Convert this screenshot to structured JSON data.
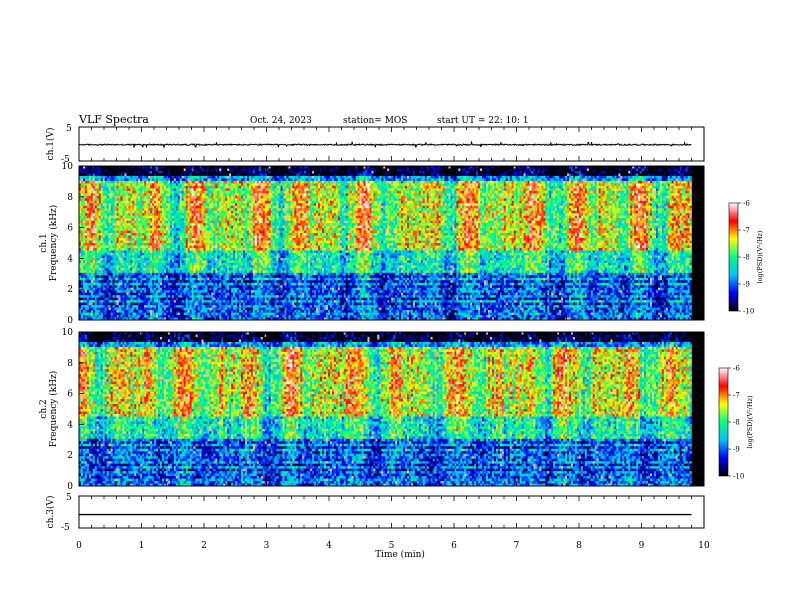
{
  "header": {
    "title": "VLF Spectra",
    "date": "Oct. 24, 2023",
    "station": "station= MOS",
    "start_ut": "start UT =  22: 10: 1"
  },
  "chart_data": [
    {
      "type": "line",
      "panel": "ch1-waveform",
      "ylabel": "ch.1(V)",
      "ylim": [
        -5,
        5
      ],
      "yticks": [
        5,
        -5
      ],
      "xlim": [
        0,
        10
      ],
      "baseline_value": -0.2,
      "note_waveform": "noisy trace near zero with small spikes",
      "x_end": 9.8,
      "color": "#000000"
    },
    {
      "type": "heatmap",
      "panel": "ch1-spectrogram",
      "ylabel_line1": "ch.1",
      "ylabel_line2": "Frequency (kHz)",
      "ylim": [
        0,
        10
      ],
      "yticks": [
        0,
        2,
        4,
        6,
        8,
        10
      ],
      "xlim": [
        0,
        10
      ],
      "x_end": 9.8,
      "colorbar": {
        "label": "log(PSD)(V²/Hz)",
        "range": [
          -10,
          -6
        ],
        "ticks": [
          -6,
          -7,
          -8,
          -9,
          -10
        ],
        "colors": [
          "#000000",
          "#0000ff",
          "#00c0ff",
          "#00ff80",
          "#ffff00",
          "#ff0000",
          "#ffffff"
        ]
      }
    },
    {
      "type": "heatmap",
      "panel": "ch2-spectrogram",
      "ylabel_line1": "ch.2",
      "ylabel_line2": "Frequency (kHz)",
      "ylim": [
        0,
        10
      ],
      "yticks": [
        0,
        2,
        4,
        6,
        8,
        10
      ],
      "xlim": [
        0,
        10
      ],
      "x_end": 9.8,
      "colorbar": {
        "label": "log(PSD)(V²/Hz)",
        "range": [
          -10,
          -6
        ],
        "ticks": [
          -6,
          -7,
          -8,
          -9,
          -10
        ],
        "colors": [
          "#000000",
          "#0000ff",
          "#00c0ff",
          "#00ff80",
          "#ffff00",
          "#ff0000",
          "#ffffff"
        ]
      }
    },
    {
      "type": "line",
      "panel": "ch3-waveform",
      "ylabel": "ch.3(V)",
      "ylim": [
        -5,
        5
      ],
      "yticks": [
        5,
        -5
      ],
      "xlim": [
        0,
        10
      ],
      "baseline_value": -0.8,
      "note_waveform": "flat trace",
      "x_end": 9.8,
      "color": "#000000"
    }
  ],
  "xaxis": {
    "label": "Time (min)",
    "ticks": [
      0,
      1,
      2,
      3,
      4,
      5,
      6,
      7,
      8,
      9,
      10
    ]
  }
}
